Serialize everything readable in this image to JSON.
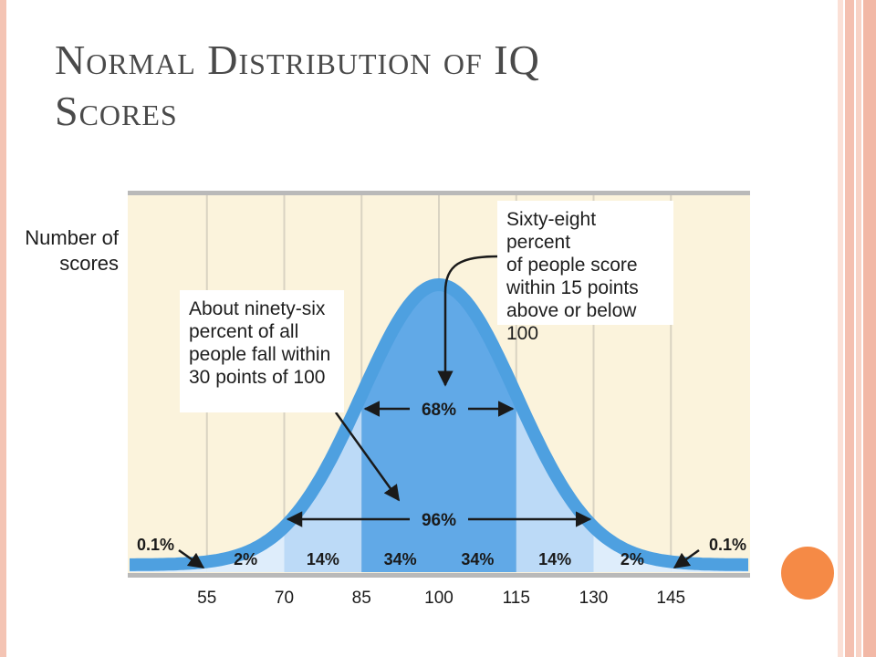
{
  "slide": {
    "title_line1": "Normal Distribution of IQ",
    "title_line2": "Scores",
    "accent_color": "#f58a46",
    "border_color": "#f4c4b4"
  },
  "chart_data": {
    "type": "area",
    "ylabel_lines": [
      "Number of",
      "scores"
    ],
    "x_ticks": [
      55,
      70,
      85,
      100,
      115,
      130,
      145
    ],
    "xlim": [
      40,
      160
    ],
    "distribution": {
      "mean": 100,
      "sd": 15
    },
    "segments": [
      {
        "from": 40,
        "to": 55,
        "percent": "0.1%"
      },
      {
        "from": 55,
        "to": 70,
        "percent": "2%"
      },
      {
        "from": 70,
        "to": 85,
        "percent": "14%"
      },
      {
        "from": 85,
        "to": 100,
        "percent": "34%"
      },
      {
        "from": 100,
        "to": 115,
        "percent": "34%"
      },
      {
        "from": 115,
        "to": 130,
        "percent": "14%"
      },
      {
        "from": 130,
        "to": 145,
        "percent": "2%"
      },
      {
        "from": 145,
        "to": 160,
        "percent": "0.1%"
      }
    ],
    "ranges": [
      {
        "label": "68%",
        "from": 85,
        "to": 115
      },
      {
        "label": "96%",
        "from": 70,
        "to": 130
      }
    ],
    "annotations": {
      "sixty_eight": [
        "Sixty-eight percent",
        "of people score",
        "within 15 points",
        "above or below 100"
      ],
      "ninety_six": [
        "About ninety-six",
        "percent of all",
        "people fall within",
        "30 points of 100"
      ]
    },
    "colors": {
      "background": "#fbf3dc",
      "grid": "#d9d3c2",
      "curve": "#4ea0e0",
      "fill_center": "#4e9fe3",
      "fill_inner": "#78b5ec",
      "fill_middle": "#bcdaf7",
      "fill_outer": "#deedfb"
    }
  }
}
